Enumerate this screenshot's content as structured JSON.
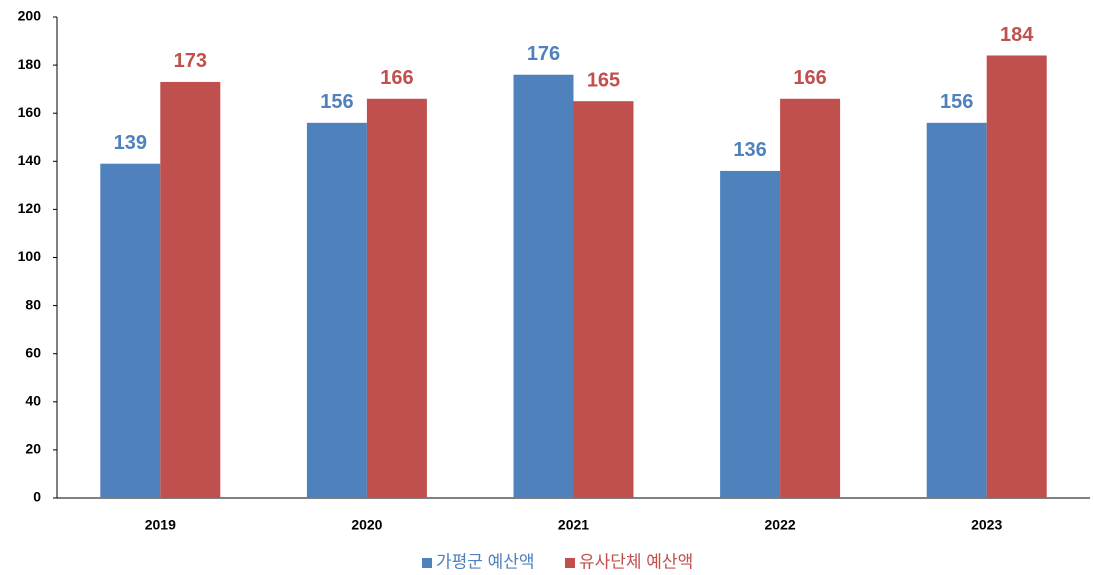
{
  "chart_data": {
    "type": "bar",
    "categories": [
      "2019",
      "2020",
      "2021",
      "2022",
      "2023"
    ],
    "series": [
      {
        "name": "가평군 예산액",
        "color": "#4f81bd",
        "values": [
          139,
          156,
          176,
          136,
          156
        ]
      },
      {
        "name": "유사단체 예산액",
        "color": "#c0504d",
        "values": [
          173,
          166,
          165,
          166,
          184
        ]
      }
    ],
    "ylim": [
      0,
      200
    ],
    "yticks": [
      0,
      20,
      40,
      60,
      80,
      100,
      120,
      140,
      160,
      180,
      200
    ],
    "grid": false,
    "legend": "bottom"
  }
}
